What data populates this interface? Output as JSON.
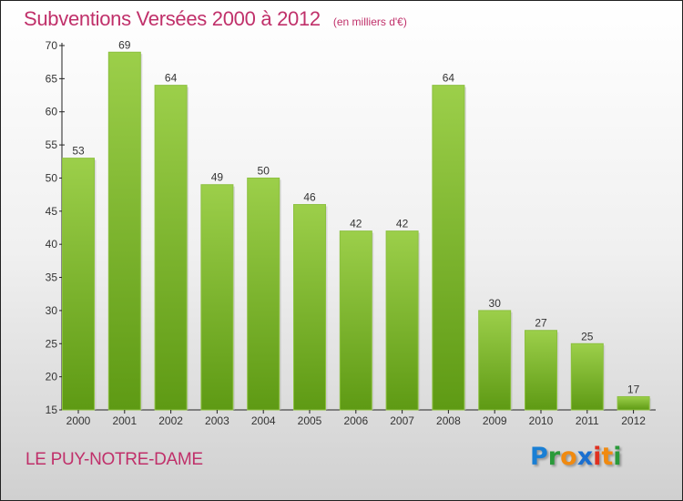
{
  "header": {
    "title": "Subventions Versées 2000 à 2012",
    "unit": "(en milliers d'€)"
  },
  "footer": {
    "commune": "LE PUY-NOTRE-DAME",
    "logo": "Proxiti"
  },
  "colors": {
    "bar_top": "#9ccf4a",
    "bar_bottom": "#5e9a14",
    "title": "#c0306a"
  },
  "chart_data": {
    "type": "bar",
    "title": "Subventions Versées 2000 à 2012",
    "ylabel": "(en milliers d'€)",
    "xlabel": "",
    "categories": [
      "2000",
      "2001",
      "2002",
      "2003",
      "2004",
      "2005",
      "2006",
      "2007",
      "2008",
      "2009",
      "2010",
      "2011",
      "2012"
    ],
    "values": [
      53,
      69,
      64,
      49,
      50,
      46,
      42,
      42,
      64,
      30,
      27,
      25,
      17
    ],
    "ylim": [
      15,
      70
    ],
    "yticks": [
      15,
      20,
      25,
      30,
      35,
      40,
      45,
      50,
      55,
      60,
      65,
      70
    ],
    "grid": false,
    "legend": "none"
  }
}
